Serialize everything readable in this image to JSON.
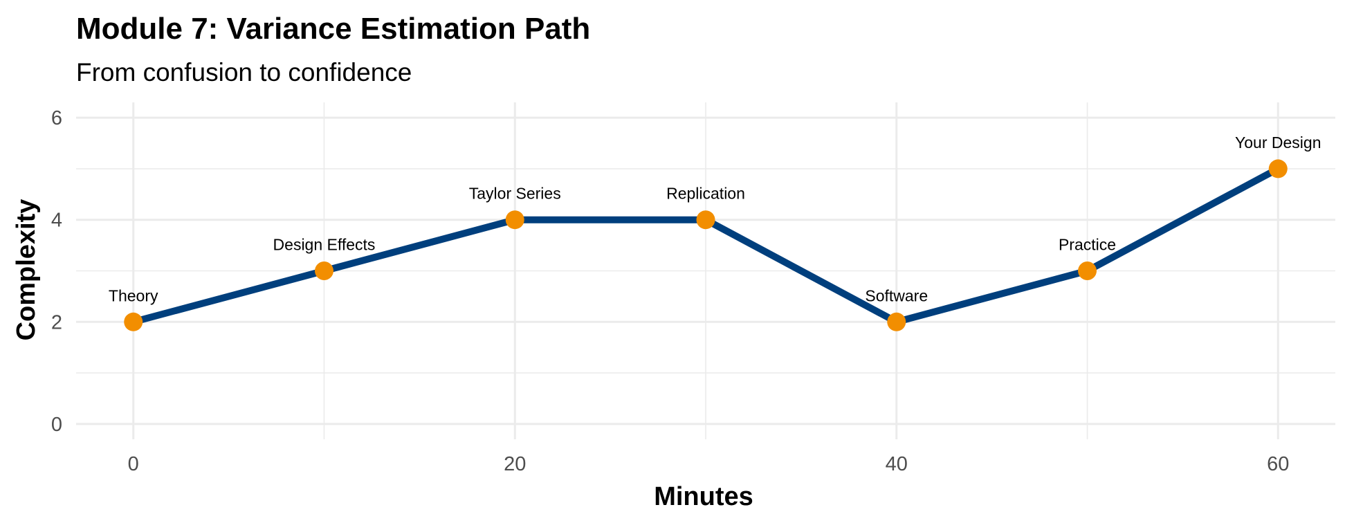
{
  "chart_data": {
    "type": "line",
    "title": "Module 7: Variance Estimation Path",
    "subtitle": "From confusion to confidence",
    "xlabel": "Minutes",
    "ylabel": "Complexity",
    "xlim": [
      -3,
      63
    ],
    "ylim": [
      -0.3,
      6.3
    ],
    "x_ticks": [
      0,
      20,
      40,
      60
    ],
    "x_minor_ticks": [
      10,
      30,
      50
    ],
    "y_ticks": [
      0,
      2,
      4,
      6
    ],
    "y_minor_ticks": [
      1,
      3,
      5
    ],
    "grid": true,
    "legend": "none",
    "line_color": "#003f7d",
    "point_color": "#f28e00",
    "points": [
      {
        "x": 0,
        "y": 2,
        "label": "Theory"
      },
      {
        "x": 10,
        "y": 3,
        "label": "Design Effects"
      },
      {
        "x": 20,
        "y": 4,
        "label": "Taylor Series"
      },
      {
        "x": 30,
        "y": 4,
        "label": "Replication"
      },
      {
        "x": 40,
        "y": 2,
        "label": "Software"
      },
      {
        "x": 50,
        "y": 3,
        "label": "Practice"
      },
      {
        "x": 60,
        "y": 5,
        "label": "Your Design"
      }
    ]
  }
}
